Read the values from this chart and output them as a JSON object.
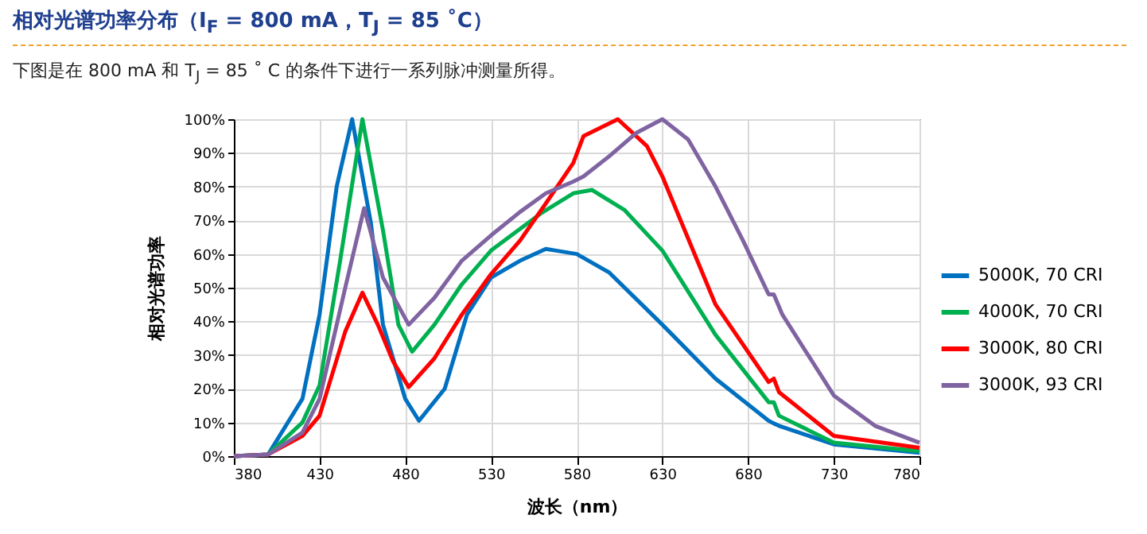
{
  "chart_data": {
    "type": "line",
    "title": "相对光谱功率分布（I$_{F}$ = 800 mA，T$_{J}$ = 85 ˚C）",
    "subtitle": "下图是在 800 mA 和 T$_{J}$ = 85 ˚ C 的条件下进行一系列脉冲测量所得。",
    "xlabel": "波长（nm）",
    "ylabel": "相对光谱功率",
    "xlim": [
      380,
      780
    ],
    "xticks": [
      380,
      430,
      480,
      530,
      580,
      630,
      680,
      730,
      780
    ],
    "ylim": [
      0,
      100
    ],
    "yticks": [
      {
        "value": 0,
        "label": "0%"
      },
      {
        "value": 10,
        "label": "10%"
      },
      {
        "value": 20,
        "label": "20%"
      },
      {
        "value": 30,
        "label": "30%"
      },
      {
        "value": 40,
        "label": "40%"
      },
      {
        "value": 50,
        "label": "50%"
      },
      {
        "value": 60,
        "label": "60%"
      },
      {
        "value": 70,
        "label": "70%"
      },
      {
        "value": 80,
        "label": "80%"
      },
      {
        "value": 90,
        "label": "90%"
      },
      {
        "value": 100,
        "label": "100%"
      }
    ],
    "grid": true,
    "legend": "right",
    "marker": "none",
    "line_style": "solid",
    "series": [
      {
        "name": "5000K, 70 CRI",
        "color": "#0070c0",
        "x": [
          380,
          400,
          420,
          430,
          440,
          449,
          460,
          467,
          480,
          488,
          503,
          516,
          530,
          547,
          562,
          568,
          580,
          599,
          630,
          661,
          692,
          695,
          698,
          730,
          780
        ],
        "values": [
          0,
          0.5,
          17,
          42,
          80,
          100,
          69,
          39,
          17,
          10.5,
          20,
          42,
          53,
          58,
          61.5,
          61,
          60,
          54.5,
          39,
          23,
          10.5,
          9.7,
          9,
          3.5,
          1
        ]
      },
      {
        "name": "4000K, 70 CRI",
        "color": "#00b050",
        "x": [
          380,
          400,
          420,
          430,
          442,
          455,
          467,
          476,
          484,
          497,
          513,
          530,
          559,
          578,
          589,
          608,
          630,
          661,
          692,
          695,
          698,
          730,
          780
        ],
        "values": [
          0,
          0.5,
          10,
          21,
          58,
          100,
          67,
          39,
          31,
          39,
          51,
          61,
          72,
          78,
          79,
          73,
          61,
          36,
          16,
          16,
          12,
          4,
          1.5
        ]
      },
      {
        "name": "3000K, 80 CRI",
        "color": "#ff0000",
        "x": [
          380,
          400,
          420,
          430,
          445,
          455,
          464,
          473,
          482,
          497,
          513,
          530,
          547,
          562,
          578,
          584,
          604,
          621,
          630,
          661,
          692,
          695,
          698,
          730,
          780
        ],
        "values": [
          0,
          0.5,
          6,
          12,
          37,
          48.5,
          39,
          28,
          20.5,
          29,
          42,
          54,
          64,
          75,
          87,
          95,
          100,
          92,
          83,
          45,
          22,
          23,
          19,
          6,
          2.5
        ]
      },
      {
        "name": "3000K, 93 CRI",
        "color": "#8064a2",
        "x": [
          380,
          400,
          420,
          430,
          445,
          456,
          467,
          482,
          497,
          513,
          530,
          547,
          562,
          578,
          584,
          599,
          615,
          630,
          645,
          661,
          677,
          692,
          695,
          700,
          730,
          754,
          780
        ],
        "values": [
          0,
          0.5,
          7,
          17,
          50,
          73.6,
          53,
          39,
          47,
          58,
          65.5,
          72.5,
          78,
          81.5,
          83,
          89,
          96,
          100,
          94,
          80,
          64,
          48,
          48,
          42,
          18,
          9,
          4
        ]
      }
    ]
  }
}
